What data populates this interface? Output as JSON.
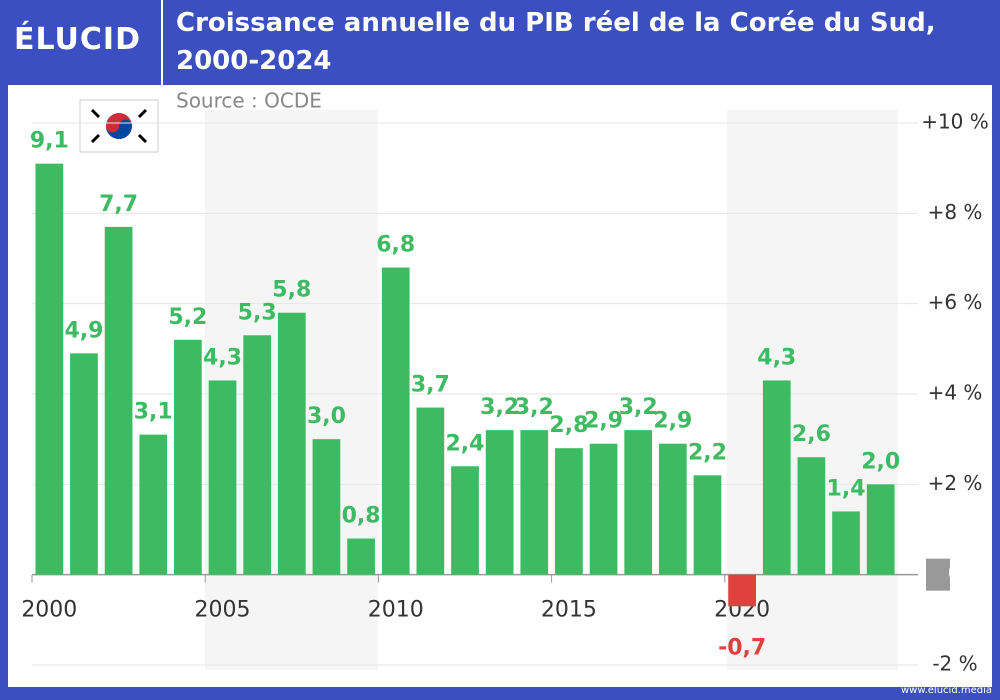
{
  "brand": "ÉLUCID",
  "footer": "www.elucid.media",
  "chart_data": {
    "type": "bar",
    "title": "Croissance annuelle du PIB réel de la Corée du Sud, 2000-2024",
    "subtitle": "Source : OCDE",
    "x": [
      2000,
      2001,
      2002,
      2003,
      2004,
      2005,
      2006,
      2007,
      2008,
      2009,
      2010,
      2011,
      2012,
      2013,
      2014,
      2015,
      2016,
      2017,
      2018,
      2019,
      2020,
      2021,
      2022,
      2023,
      2024
    ],
    "values": [
      9.1,
      4.9,
      7.7,
      3.1,
      5.2,
      4.3,
      5.3,
      5.8,
      3.0,
      0.8,
      6.8,
      3.7,
      2.4,
      3.2,
      3.2,
      2.8,
      2.9,
      3.2,
      2.9,
      2.2,
      -0.7,
      4.3,
      2.6,
      1.4,
      2.0
    ],
    "value_labels": [
      "9,1",
      "4,9",
      "7,7",
      "3,1",
      "5,2",
      "4,3",
      "5,3",
      "5,8",
      "3,0",
      "0,8",
      "6,8",
      "3,7",
      "2,4",
      "3,2",
      "3,2",
      "2,8",
      "2,9",
      "3,2",
      "2,9",
      "2,2",
      "-0,7",
      "4,3",
      "2,6",
      "1,4",
      "2,0"
    ],
    "color": "#3dbb62",
    "negative_color": "#e0413f",
    "xlim": [
      1999.5,
      2024.5
    ],
    "xticks": [
      2000,
      2005,
      2010,
      2015,
      2020
    ],
    "ylim": [
      -2,
      10
    ],
    "yticks": [
      {
        "value": -2,
        "label": "-2 %"
      },
      0,
      {
        "value": 2,
        "label": "+2 %"
      },
      {
        "value": 4,
        "label": "+4 %"
      },
      {
        "value": 6,
        "label": "+6 %"
      },
      {
        "value": 8,
        "label": "+8 %"
      },
      {
        "value": 10,
        "label": "+10 %"
      }
    ],
    "grid": true
  }
}
